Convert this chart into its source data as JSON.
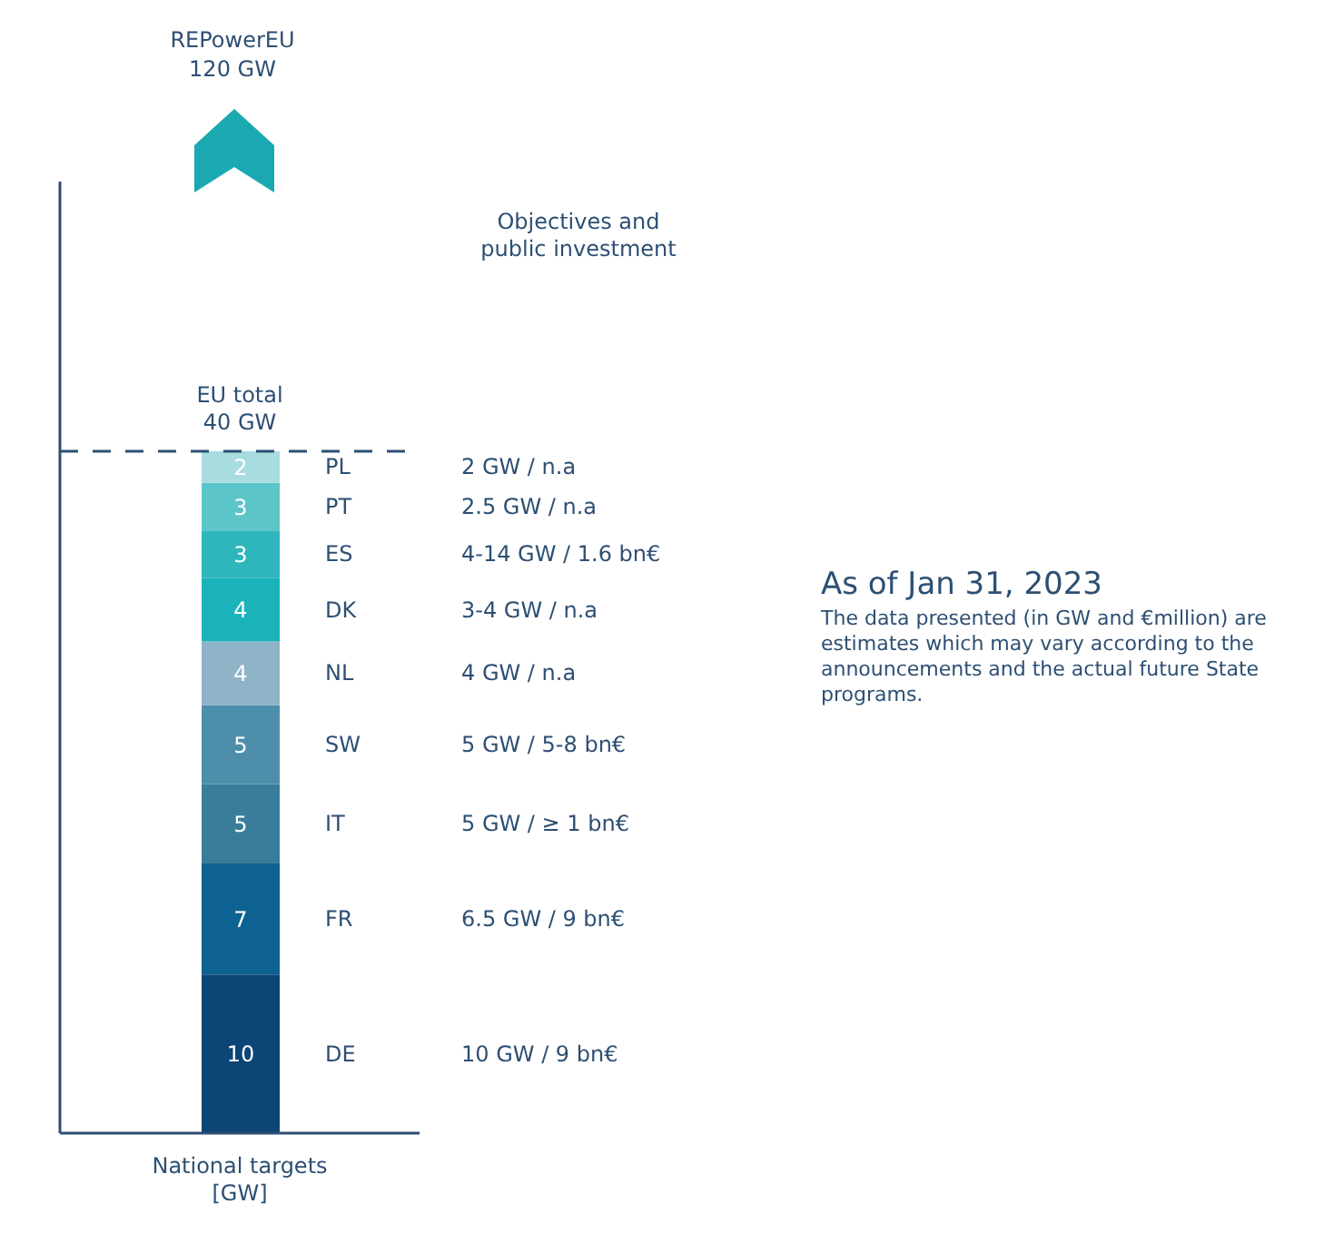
{
  "chart_data": {
    "type": "bar",
    "stacked": true,
    "subtitle": "As of Jan 31, 2023",
    "xlabel": "National targets [GW]",
    "categories": [
      null
    ],
    "series": [
      {
        "name": "DE",
        "color": "#0b4677",
        "values": [
          10
        ]
      },
      {
        "name": "FR",
        "color": "#0d6291",
        "values": [
          7
        ]
      },
      {
        "name": "IT",
        "color": "#3a7d9a",
        "values": [
          5
        ]
      },
      {
        "name": "SW",
        "color": "#4d8eab",
        "values": [
          5
        ]
      },
      {
        "name": "NL",
        "color": "#8fb4c7",
        "values": [
          4
        ]
      },
      {
        "name": "DK",
        "color": "#1ab3ba",
        "values": [
          4
        ]
      },
      {
        "name": "ES",
        "color": "#2fb6bc",
        "values": [
          3
        ]
      },
      {
        "name": "PT",
        "color": "#5cc5c8",
        "values": [
          3
        ]
      },
      {
        "name": "PL",
        "color": "#a9dcdf",
        "values": [
          2
        ]
      }
    ],
    "data_labels": true,
    "legend": false,
    "grid": false,
    "tick_labels": false,
    "ref_lines": [
      {
        "axis": "y",
        "value": 43,
        "label": "EU total 40 GW",
        "line_style": "dashed",
        "color": "#2d4f73"
      }
    ],
    "annotations": [
      "REPowerEU 120 GW",
      "Objectives and public investment",
      "The data presented (in GW and €million) are estimates which may vary according to the announcements and the actual future State programs.",
      "10 GW / 9 bn€",
      "6.5 GW / 9 bn€",
      "5 GW / ≥ 1 bn€",
      "5 GW / 5-8 bn€",
      "4 GW / n.a",
      "3-4 GW / n.a",
      "4-14 GW / 1.6 bn€",
      "2.5 GW / n.a",
      "2 GW / n.a"
    ]
  }
}
